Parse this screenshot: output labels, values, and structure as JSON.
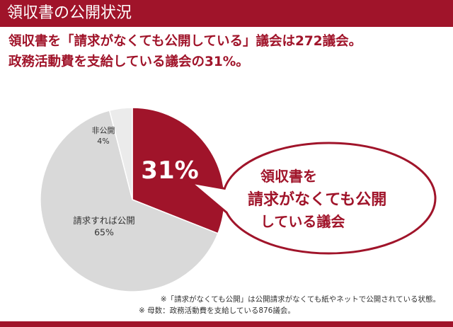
{
  "header": {
    "title": "領収書の公開状況"
  },
  "headline": {
    "line1": "領収書を「請求がなくても公開している」議会は272議会。",
    "line2": "政務活動費を支給している議会の31%。"
  },
  "callout": {
    "line1": "領収書を",
    "line2": "請求がなくても公開",
    "line3": "している議会"
  },
  "footnotes": {
    "note1": "※「請求がなくても公開」は公開請求がなくても紙やネットで公開されている状態。",
    "note2": "※ 母数：政務活動費を支給している876議会。"
  },
  "colors": {
    "accent": "#a0142a",
    "pie_gray": "#d9d9d9",
    "pie_light": "#ebebeb"
  },
  "chart_data": {
    "type": "pie",
    "title": "",
    "slices": [
      {
        "label": "",
        "value": 31,
        "display": "31%",
        "color": "#a0142a"
      },
      {
        "label": "請求すれば公開",
        "value": 65,
        "display": "65%",
        "color": "#d9d9d9"
      },
      {
        "label": "非公開",
        "value": 4,
        "display": "4%",
        "color": "#ebebeb"
      }
    ]
  }
}
